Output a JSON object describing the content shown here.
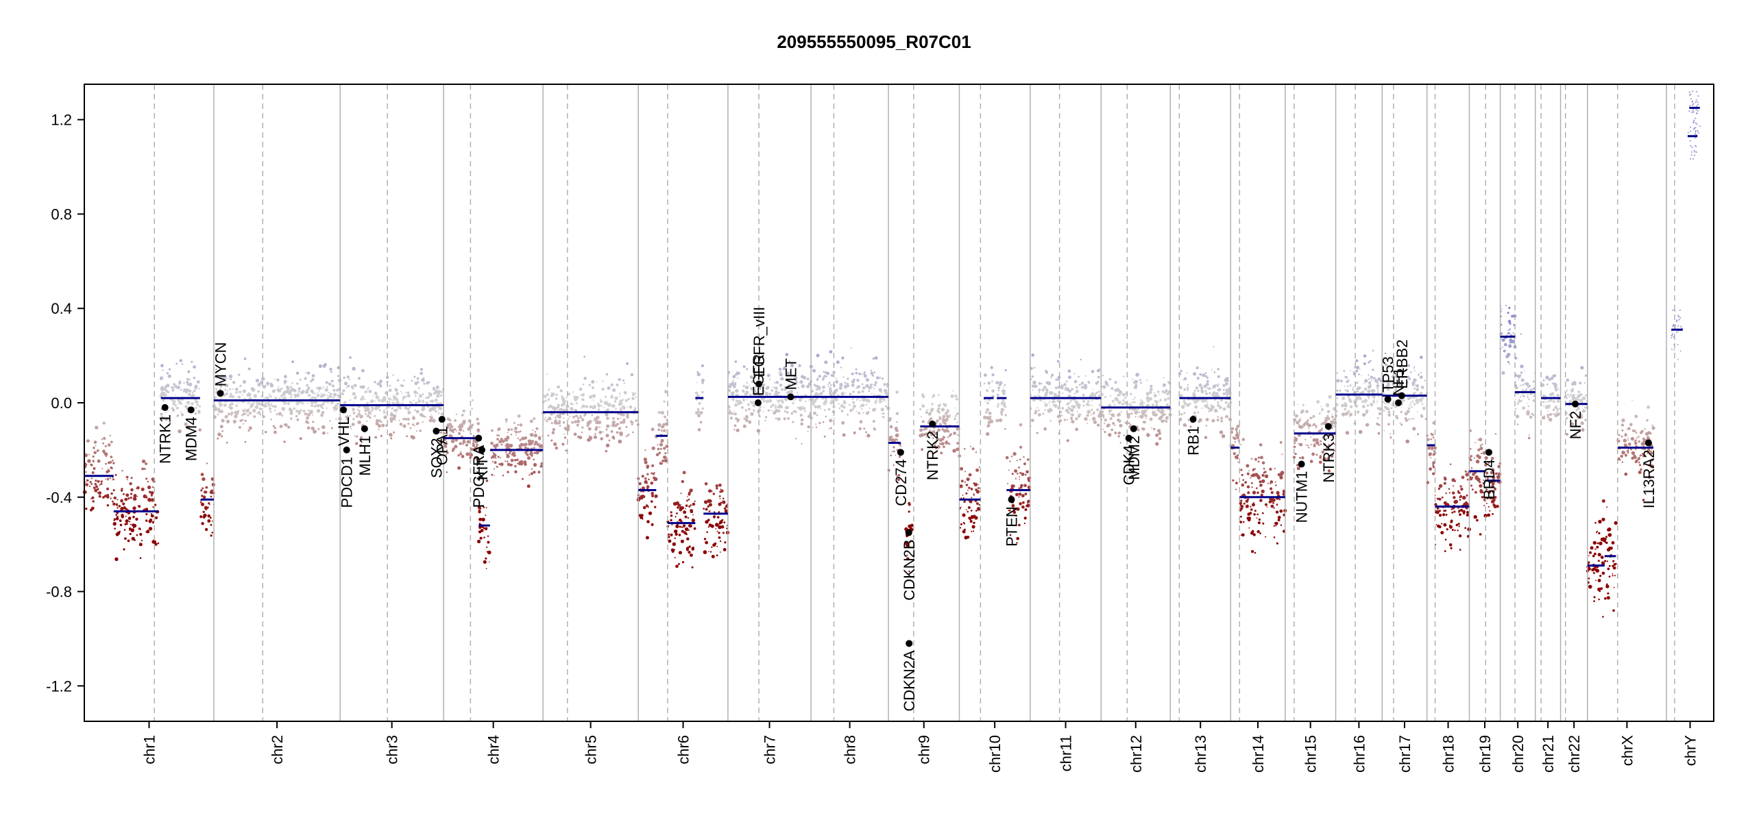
{
  "chart_data": {
    "type": "scatter",
    "title": "209555550095_R07C01",
    "xlabel": "",
    "ylabel": "",
    "ylim": [
      -1.35,
      1.35
    ],
    "y_ticks": [
      {
        "value": 1.2,
        "label": "1.2"
      },
      {
        "value": 0.8,
        "label": "0.8"
      },
      {
        "value": 0.4,
        "label": "0.4"
      },
      {
        "value": 0.0,
        "label": "0.0"
      },
      {
        "value": -0.4,
        "label": "-0.4"
      },
      {
        "value": -0.8,
        "label": "-0.8"
      },
      {
        "value": -1.2,
        "label": "-1.2"
      }
    ],
    "grid": false,
    "colors": {
      "gain_points": "#9a9cc8",
      "neutral_points": "#d0d0d0",
      "loss_points": "#8b0000",
      "segment": "#00008b",
      "gene_marker": "#000000",
      "chrom_boundary": "#b0b0b0",
      "centromere": "#b0b0b0"
    },
    "x_unit": "genome position (relative, 0-1)",
    "chromosomes": [
      {
        "name": "chr1",
        "start": 0.0,
        "end": 0.0795,
        "centromere": 0.043
      },
      {
        "name": "chr2",
        "start": 0.0795,
        "end": 0.157,
        "centromere": 0.1095
      },
      {
        "name": "chr3",
        "start": 0.157,
        "end": 0.2205,
        "centromere": 0.186
      },
      {
        "name": "chr4",
        "start": 0.2205,
        "end": 0.2815,
        "centromere": 0.237
      },
      {
        "name": "chr5",
        "start": 0.2815,
        "end": 0.34,
        "centromere": 0.2965
      },
      {
        "name": "chr6",
        "start": 0.34,
        "end": 0.395,
        "centromere": 0.358
      },
      {
        "name": "chr7",
        "start": 0.395,
        "end": 0.446,
        "centromere": 0.414
      },
      {
        "name": "chr8",
        "start": 0.446,
        "end": 0.4935,
        "centromere": 0.46
      },
      {
        "name": "chr9",
        "start": 0.4935,
        "end": 0.537,
        "centromere": 0.509
      },
      {
        "name": "chr10",
        "start": 0.537,
        "end": 0.5805,
        "centromere": 0.55
      },
      {
        "name": "chr11",
        "start": 0.5805,
        "end": 0.624,
        "centromere": 0.5985
      },
      {
        "name": "chr12",
        "start": 0.624,
        "end": 0.6665,
        "centromere": 0.64
      },
      {
        "name": "chr13",
        "start": 0.6665,
        "end": 0.7035,
        "centromere": 0.672
      },
      {
        "name": "chr14",
        "start": 0.7035,
        "end": 0.737,
        "centromere": 0.709
      },
      {
        "name": "chr15",
        "start": 0.737,
        "end": 0.768,
        "centromere": 0.7425
      },
      {
        "name": "chr16",
        "start": 0.768,
        "end": 0.7965,
        "centromere": 0.78
      },
      {
        "name": "chr17",
        "start": 0.7965,
        "end": 0.824,
        "centromere": 0.8035
      },
      {
        "name": "chr18",
        "start": 0.824,
        "end": 0.85,
        "centromere": 0.829
      },
      {
        "name": "chr19",
        "start": 0.85,
        "end": 0.869,
        "centromere": 0.86
      },
      {
        "name": "chr20",
        "start": 0.869,
        "end": 0.8905,
        "centromere": 0.878
      },
      {
        "name": "chr21",
        "start": 0.8905,
        "end": 0.906,
        "centromere": 0.894
      },
      {
        "name": "chr22",
        "start": 0.906,
        "end": 0.9225,
        "centromere": 0.909
      },
      {
        "name": "chrX",
        "start": 0.9225,
        "end": 0.971,
        "centromere": 0.941
      },
      {
        "name": "chrY",
        "start": 0.971,
        "end": 1.0,
        "centromere": 0.976
      }
    ],
    "segments": [
      {
        "chrom": "chr1",
        "x0": 0.0,
        "x1": 0.018,
        "y": -0.31
      },
      {
        "chrom": "chr1",
        "x0": 0.018,
        "x1": 0.0455,
        "y": -0.46
      },
      {
        "chrom": "chr1",
        "x0": 0.047,
        "x1": 0.071,
        "y": 0.02
      },
      {
        "chrom": "chr1",
        "x0": 0.0715,
        "x1": 0.0795,
        "y": -0.41
      },
      {
        "chrom": "chr2",
        "x0": 0.0795,
        "x1": 0.113,
        "y": 0.01
      },
      {
        "chrom": "chr2",
        "x0": 0.113,
        "x1": 0.157,
        "y": 0.01
      },
      {
        "chrom": "chr3",
        "x0": 0.157,
        "x1": 0.2205,
        "y": -0.01
      },
      {
        "chrom": "chr4",
        "x0": 0.2205,
        "x1": 0.242,
        "y": -0.15
      },
      {
        "chrom": "chr4",
        "x0": 0.242,
        "x1": 0.249,
        "y": -0.52
      },
      {
        "chrom": "chr4",
        "x0": 0.249,
        "x1": 0.2815,
        "y": -0.2
      },
      {
        "chrom": "chr5",
        "x0": 0.2815,
        "x1": 0.34,
        "y": -0.04
      },
      {
        "chrom": "chr6",
        "x0": 0.34,
        "x1": 0.351,
        "y": -0.37
      },
      {
        "chrom": "chr6",
        "x0": 0.351,
        "x1": 0.358,
        "y": -0.14
      },
      {
        "chrom": "chr6",
        "x0": 0.358,
        "x1": 0.375,
        "y": -0.51
      },
      {
        "chrom": "chr6",
        "x0": 0.375,
        "x1": 0.38,
        "y": 0.02
      },
      {
        "chrom": "chr6",
        "x0": 0.38,
        "x1": 0.395,
        "y": -0.47
      },
      {
        "chrom": "chr7",
        "x0": 0.395,
        "x1": 0.446,
        "y": 0.025
      },
      {
        "chrom": "chr8",
        "x0": 0.446,
        "x1": 0.4935,
        "y": 0.025
      },
      {
        "chrom": "chr9",
        "x0": 0.4935,
        "x1": 0.501,
        "y": -0.17
      },
      {
        "chrom": "chr9",
        "x0": 0.504,
        "x1": 0.508,
        "y": -0.55
      },
      {
        "chrom": "chr9",
        "x0": 0.513,
        "x1": 0.537,
        "y": -0.1
      },
      {
        "chrom": "chr10",
        "x0": 0.537,
        "x1": 0.55,
        "y": -0.41
      },
      {
        "chrom": "chr10",
        "x0": 0.552,
        "x1": 0.558,
        "y": 0.02
      },
      {
        "chrom": "chr10",
        "x0": 0.56,
        "x1": 0.566,
        "y": 0.02
      },
      {
        "chrom": "chr10",
        "x0": 0.566,
        "x1": 0.5805,
        "y": -0.37
      },
      {
        "chrom": "chr11",
        "x0": 0.5805,
        "x1": 0.624,
        "y": 0.02
      },
      {
        "chrom": "chr12",
        "x0": 0.624,
        "x1": 0.6665,
        "y": -0.02
      },
      {
        "chrom": "chr13",
        "x0": 0.672,
        "x1": 0.7035,
        "y": 0.02
      },
      {
        "chrom": "chr14",
        "x0": 0.7035,
        "x1": 0.709,
        "y": -0.19
      },
      {
        "chrom": "chr14",
        "x0": 0.709,
        "x1": 0.737,
        "y": -0.4
      },
      {
        "chrom": "chr15",
        "x0": 0.7425,
        "x1": 0.768,
        "y": -0.13
      },
      {
        "chrom": "chr16",
        "x0": 0.768,
        "x1": 0.7965,
        "y": 0.035
      },
      {
        "chrom": "chr17",
        "x0": 0.7965,
        "x1": 0.824,
        "y": 0.03
      },
      {
        "chrom": "chr18",
        "x0": 0.824,
        "x1": 0.829,
        "y": -0.18
      },
      {
        "chrom": "chr18",
        "x0": 0.829,
        "x1": 0.85,
        "y": -0.44
      },
      {
        "chrom": "chr19",
        "x0": 0.85,
        "x1": 0.86,
        "y": -0.29
      },
      {
        "chrom": "chr19",
        "x0": 0.86,
        "x1": 0.869,
        "y": -0.33
      },
      {
        "chrom": "chr20",
        "x0": 0.869,
        "x1": 0.878,
        "y": 0.28
      },
      {
        "chrom": "chr20",
        "x0": 0.878,
        "x1": 0.8905,
        "y": 0.045
      },
      {
        "chrom": "chr21",
        "x0": 0.894,
        "x1": 0.906,
        "y": 0.02
      },
      {
        "chrom": "chr22",
        "x0": 0.909,
        "x1": 0.9225,
        "y": -0.005
      },
      {
        "chrom": "chrX",
        "x0": 0.9225,
        "x1": 0.933,
        "y": -0.69
      },
      {
        "chrom": "chrX",
        "x0": 0.933,
        "x1": 0.94,
        "y": -0.65
      },
      {
        "chrom": "chrX",
        "x0": 0.941,
        "x1": 0.963,
        "y": -0.19
      },
      {
        "chrom": "chrY",
        "x0": 0.974,
        "x1": 0.981,
        "y": 0.31
      },
      {
        "chrom": "chrY",
        "x0": 0.984,
        "x1": 0.99,
        "y": 1.13
      },
      {
        "chrom": "chrY",
        "x0": 0.985,
        "x1": 0.9915,
        "y": 1.25
      }
    ],
    "genes": [
      {
        "name": "NTRK1",
        "x": 0.0495,
        "y": -0.02
      },
      {
        "name": "MDM4",
        "x": 0.0655,
        "y": -0.03
      },
      {
        "name": "MYCN",
        "x": 0.0835,
        "y": 0.04
      },
      {
        "name": "VHL",
        "x": 0.159,
        "y": -0.03
      },
      {
        "name": "PDCD1",
        "x": 0.161,
        "y": -0.2
      },
      {
        "name": "MLH1",
        "x": 0.172,
        "y": -0.11
      },
      {
        "name": "SOX2",
        "x": 0.216,
        "y": -0.12
      },
      {
        "name": "OPA1",
        "x": 0.2195,
        "y": -0.07
      },
      {
        "name": "PDGFRA",
        "x": 0.242,
        "y": -0.15
      },
      {
        "name": "KIT",
        "x": 0.244,
        "y": -0.2
      },
      {
        "name": "EGFR",
        "x": 0.4135,
        "y": 0.0
      },
      {
        "name": "EGFR_vIII",
        "x": 0.414,
        "y": 0.08
      },
      {
        "name": "MET",
        "x": 0.4335,
        "y": 0.025
      },
      {
        "name": "CD274",
        "x": 0.501,
        "y": -0.21
      },
      {
        "name": "CDKN2B",
        "x": 0.506,
        "y": -0.55
      },
      {
        "name": "CDKN2A",
        "x": 0.5062,
        "y": -1.02
      },
      {
        "name": "NTRK2",
        "x": 0.5205,
        "y": -0.09
      },
      {
        "name": "PTEN",
        "x": 0.569,
        "y": -0.41
      },
      {
        "name": "CDK4",
        "x": 0.641,
        "y": -0.15
      },
      {
        "name": "MDM2",
        "x": 0.644,
        "y": -0.11
      },
      {
        "name": "RB1",
        "x": 0.6805,
        "y": -0.07
      },
      {
        "name": "NUTM1",
        "x": 0.747,
        "y": -0.26
      },
      {
        "name": "NTRK3",
        "x": 0.7635,
        "y": -0.1
      },
      {
        "name": "TP53",
        "x": 0.8,
        "y": 0.015
      },
      {
        "name": "NF1",
        "x": 0.8065,
        "y": 0.0
      },
      {
        "name": "ERBB2",
        "x": 0.8085,
        "y": 0.03
      },
      {
        "name": "BRD4",
        "x": 0.862,
        "y": -0.21
      },
      {
        "name": "NF2",
        "x": 0.915,
        "y": -0.005
      },
      {
        "name": "IL13RA2",
        "x": 0.96,
        "y": -0.17
      }
    ]
  }
}
